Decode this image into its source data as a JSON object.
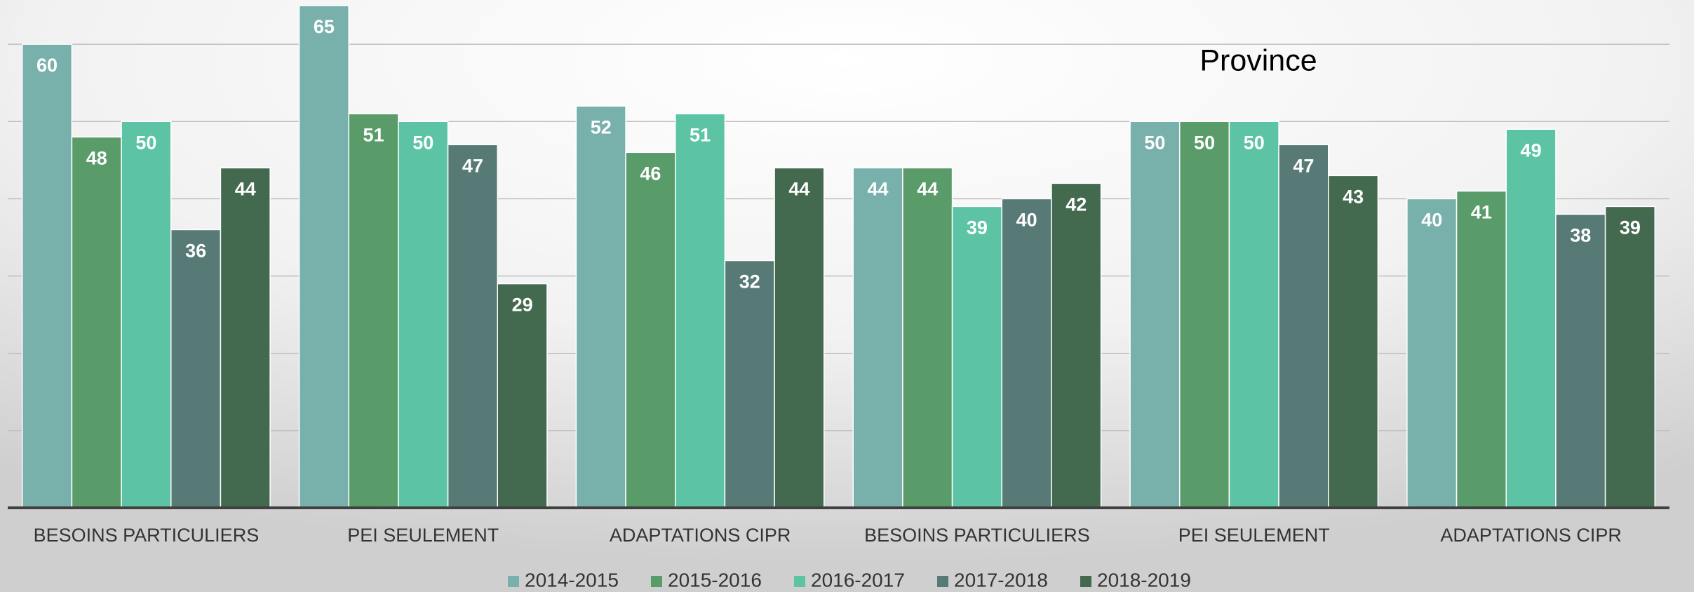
{
  "chart_data": {
    "type": "bar",
    "title": "Province",
    "categories": [
      "BESOINS PARTICULIERS",
      "PEI SEULEMENT",
      "ADAPTATIONS CIPR",
      "BESOINS PARTICULIERS",
      "PEI SEULEMENT",
      "ADAPTATIONS CIPR"
    ],
    "series": [
      {
        "name": "2014-2015",
        "color": "#78b0ac",
        "values": [
          60,
          65,
          52,
          44,
          50,
          40
        ]
      },
      {
        "name": "2015-2016",
        "color": "#5a9b6a",
        "values": [
          48,
          51,
          46,
          44,
          50,
          41
        ]
      },
      {
        "name": "2016-2017",
        "color": "#5cc4a4",
        "values": [
          50,
          50,
          51,
          39,
          50,
          49
        ]
      },
      {
        "name": "2017-2018",
        "color": "#577a76",
        "values": [
          36,
          47,
          32,
          40,
          47,
          38
        ]
      },
      {
        "name": "2018-2019",
        "color": "#43694f",
        "values": [
          44,
          29,
          44,
          42,
          43,
          39
        ]
      }
    ],
    "ylim": [
      0,
      65
    ],
    "yticks": [
      0,
      10,
      20,
      30,
      40,
      50,
      60
    ],
    "grid": true,
    "legend": "bottom"
  }
}
